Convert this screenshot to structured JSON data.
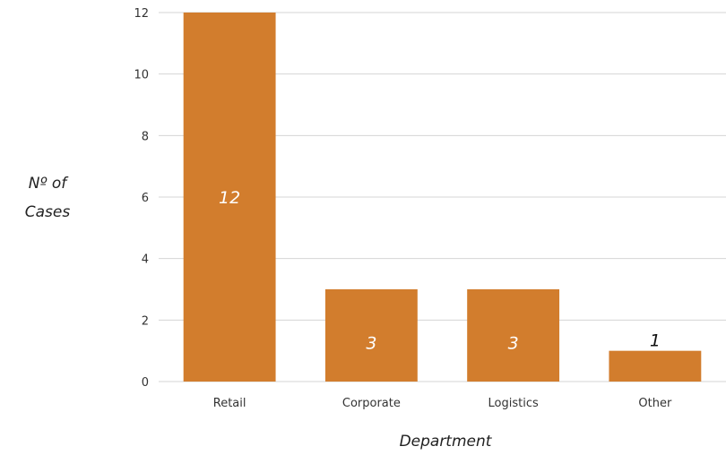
{
  "chart_data": {
    "type": "bar",
    "categories": [
      "Retail",
      "Corporate",
      "Logistics",
      "Other"
    ],
    "values": [
      12,
      3,
      3,
      1
    ],
    "data_labels": [
      "12",
      "3",
      "3",
      "1"
    ],
    "xlabel": "Department",
    "ylabel_lines": [
      "Nº of",
      "Cases"
    ],
    "ylim": [
      0,
      12
    ],
    "yticks": [
      "0",
      "2",
      "4",
      "6",
      "8",
      "10",
      "12"
    ],
    "ytick_values": [
      0,
      2,
      4,
      6,
      8,
      10,
      12
    ],
    "grid": true,
    "legend": "none",
    "bar_color": "#d27d2d",
    "label_color_inside": "#ffffff",
    "label_color_outside": "#111111"
  }
}
